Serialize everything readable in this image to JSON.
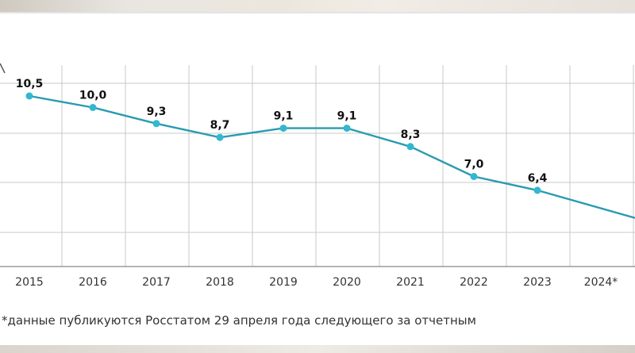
{
  "chart_data": {
    "type": "line",
    "categories": [
      "2015",
      "2016",
      "2017",
      "2018",
      "2019",
      "2020",
      "2021",
      "2022",
      "2023",
      "2024*"
    ],
    "values": [
      10.5,
      10.0,
      9.3,
      8.7,
      9.1,
      9.1,
      8.3,
      7.0,
      6.4,
      null
    ],
    "data_labels": [
      "10,5",
      "10,0",
      "9,3",
      "8,7",
      "9,1",
      "9,1",
      "8,3",
      "7,0",
      "6,4",
      ""
    ],
    "trend_end_value": 5.2,
    "grid": true,
    "colors": {
      "line": "#2a9bb0",
      "point": "#31b8d0",
      "grid": "#c8c8c8",
      "label": "#111111"
    }
  },
  "footnote": "*данные публикуются Росстатом 29 апреля года следующего за отчетным"
}
